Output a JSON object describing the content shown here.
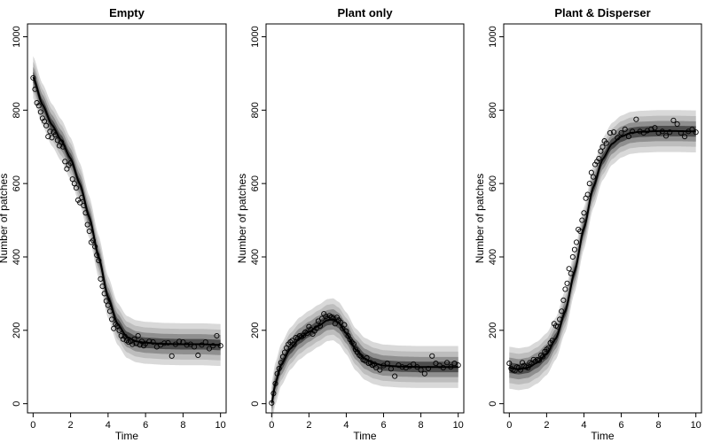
{
  "chart_data": [
    {
      "type": "scatter",
      "title": "Empty",
      "xlabel": "Time",
      "ylabel": "Number of patches",
      "xlim": [
        -0.3,
        10.3
      ],
      "ylim": [
        -25,
        1035
      ],
      "xticks": [
        0,
        2,
        4,
        6,
        8,
        10
      ],
      "yticks": [
        0,
        200,
        400,
        600,
        800,
        1000
      ],
      "mean": [
        [
          0,
          890
        ],
        [
          0.5,
          815
        ],
        [
          1,
          760
        ],
        [
          1.5,
          718
        ],
        [
          2,
          668
        ],
        [
          2.5,
          598
        ],
        [
          3,
          508
        ],
        [
          3.5,
          400
        ],
        [
          4,
          290
        ],
        [
          4.5,
          218
        ],
        [
          5,
          182
        ],
        [
          5.5,
          170
        ],
        [
          6,
          166
        ],
        [
          7,
          163
        ],
        [
          8,
          162
        ],
        [
          9,
          162
        ],
        [
          10,
          160
        ]
      ],
      "band_width": 22,
      "points": [
        [
          0,
          888
        ],
        [
          0.1,
          857
        ],
        [
          0.2,
          820
        ],
        [
          0.3,
          812
        ],
        [
          0.4,
          795
        ],
        [
          0.5,
          778
        ],
        [
          0.6,
          770
        ],
        [
          0.7,
          758
        ],
        [
          0.8,
          728
        ],
        [
          0.9,
          742
        ],
        [
          1.0,
          725
        ],
        [
          1.1,
          740
        ],
        [
          1.2,
          733
        ],
        [
          1.3,
          718
        ],
        [
          1.4,
          703
        ],
        [
          1.5,
          713
        ],
        [
          1.6,
          700
        ],
        [
          1.7,
          660
        ],
        [
          1.8,
          640
        ],
        [
          1.9,
          650
        ],
        [
          2.0,
          656
        ],
        [
          2.1,
          612
        ],
        [
          2.2,
          600
        ],
        [
          2.3,
          588
        ],
        [
          2.4,
          555
        ],
        [
          2.5,
          548
        ],
        [
          2.6,
          562
        ],
        [
          2.7,
          540
        ],
        [
          2.8,
          520
        ],
        [
          2.9,
          488
        ],
        [
          3.0,
          470
        ],
        [
          3.1,
          440
        ],
        [
          3.2,
          445
        ],
        [
          3.3,
          428
        ],
        [
          3.4,
          405
        ],
        [
          3.5,
          390
        ],
        [
          3.6,
          340
        ],
        [
          3.7,
          320
        ],
        [
          3.8,
          300
        ],
        [
          3.9,
          280
        ],
        [
          4.0,
          268
        ],
        [
          4.1,
          252
        ],
        [
          4.2,
          230
        ],
        [
          4.3,
          205
        ],
        [
          4.4,
          217
        ],
        [
          4.5,
          212
        ],
        [
          4.6,
          200
        ],
        [
          4.7,
          185
        ],
        [
          4.8,
          176
        ],
        [
          4.9,
          183
        ],
        [
          5.0,
          172
        ],
        [
          5.1,
          168
        ],
        [
          5.2,
          170
        ],
        [
          5.3,
          162
        ],
        [
          5.4,
          176
        ],
        [
          5.5,
          165
        ],
        [
          5.6,
          185
        ],
        [
          5.7,
          160
        ],
        [
          5.8,
          170
        ],
        [
          5.9,
          158
        ],
        [
          6.0,
          164
        ],
        [
          6.2,
          170
        ],
        [
          6.4,
          168
        ],
        [
          6.6,
          155
        ],
        [
          6.8,
          160
        ],
        [
          7.0,
          165
        ],
        [
          7.2,
          166
        ],
        [
          7.4,
          130
        ],
        [
          7.6,
          162
        ],
        [
          7.8,
          170
        ],
        [
          8.0,
          168
        ],
        [
          8.2,
          160
        ],
        [
          8.4,
          162
        ],
        [
          8.6,
          155
        ],
        [
          8.8,
          132
        ],
        [
          9.0,
          160
        ],
        [
          9.2,
          168
        ],
        [
          9.4,
          150
        ],
        [
          9.6,
          158
        ],
        [
          9.8,
          185
        ],
        [
          10.0,
          158
        ]
      ]
    },
    {
      "type": "scatter",
      "title": "Plant only",
      "xlabel": "Time",
      "ylabel": "Number of patches",
      "xlim": [
        -0.3,
        10.3
      ],
      "ylim": [
        -25,
        1035
      ],
      "xticks": [
        0,
        2,
        4,
        6,
        8,
        10
      ],
      "yticks": [
        0,
        200,
        400,
        600,
        800,
        1000
      ],
      "mean": [
        [
          0,
          2
        ],
        [
          0.2,
          55
        ],
        [
          0.5,
          105
        ],
        [
          1,
          150
        ],
        [
          1.5,
          178
        ],
        [
          2,
          196
        ],
        [
          2.5,
          212
        ],
        [
          3,
          228
        ],
        [
          3.3,
          230
        ],
        [
          3.6,
          220
        ],
        [
          4,
          192
        ],
        [
          4.5,
          148
        ],
        [
          5,
          122
        ],
        [
          5.5,
          110
        ],
        [
          6,
          104
        ],
        [
          7,
          101
        ],
        [
          8,
          100
        ],
        [
          9,
          100
        ],
        [
          10,
          100
        ]
      ],
      "band_width": 22,
      "points": [
        [
          0,
          2
        ],
        [
          0.1,
          28
        ],
        [
          0.2,
          55
        ],
        [
          0.3,
          82
        ],
        [
          0.4,
          96
        ],
        [
          0.5,
          112
        ],
        [
          0.6,
          128
        ],
        [
          0.7,
          140
        ],
        [
          0.8,
          152
        ],
        [
          0.9,
          162
        ],
        [
          1.0,
          168
        ],
        [
          1.1,
          172
        ],
        [
          1.2,
          162
        ],
        [
          1.3,
          180
        ],
        [
          1.4,
          178
        ],
        [
          1.5,
          185
        ],
        [
          1.6,
          182
        ],
        [
          1.7,
          186
        ],
        [
          1.8,
          195
        ],
        [
          1.9,
          192
        ],
        [
          2.0,
          210
        ],
        [
          2.1,
          202
        ],
        [
          2.2,
          190
        ],
        [
          2.3,
          198
        ],
        [
          2.4,
          206
        ],
        [
          2.5,
          225
        ],
        [
          2.6,
          212
        ],
        [
          2.7,
          232
        ],
        [
          2.8,
          245
        ],
        [
          2.9,
          238
        ],
        [
          3.0,
          232
        ],
        [
          3.1,
          240
        ],
        [
          3.2,
          236
        ],
        [
          3.3,
          232
        ],
        [
          3.4,
          218
        ],
        [
          3.5,
          235
        ],
        [
          3.6,
          228
        ],
        [
          3.7,
          222
        ],
        [
          3.8,
          205
        ],
        [
          3.9,
          215
        ],
        [
          4.0,
          198
        ],
        [
          4.1,
          185
        ],
        [
          4.2,
          175
        ],
        [
          4.3,
          168
        ],
        [
          4.4,
          163
        ],
        [
          4.5,
          148
        ],
        [
          4.6,
          140
        ],
        [
          4.7,
          132
        ],
        [
          4.8,
          128
        ],
        [
          4.9,
          120
        ],
        [
          5.0,
          118
        ],
        [
          5.1,
          125
        ],
        [
          5.2,
          110
        ],
        [
          5.3,
          112
        ],
        [
          5.4,
          105
        ],
        [
          5.5,
          108
        ],
        [
          5.6,
          98
        ],
        [
          5.8,
          92
        ],
        [
          6.0,
          104
        ],
        [
          6.2,
          110
        ],
        [
          6.4,
          95
        ],
        [
          6.6,
          75
        ],
        [
          6.8,
          105
        ],
        [
          7.0,
          100
        ],
        [
          7.2,
          98
        ],
        [
          7.4,
          102
        ],
        [
          7.6,
          108
        ],
        [
          7.8,
          100
        ],
        [
          8.0,
          92
        ],
        [
          8.2,
          82
        ],
        [
          8.4,
          96
        ],
        [
          8.6,
          130
        ],
        [
          8.8,
          110
        ],
        [
          9.0,
          104
        ],
        [
          9.2,
          98
        ],
        [
          9.4,
          112
        ],
        [
          9.6,
          100
        ],
        [
          9.8,
          110
        ],
        [
          10.0,
          105
        ]
      ]
    },
    {
      "type": "scatter",
      "title": "Plant & Disperser",
      "xlabel": "Time",
      "ylabel": "Number of patches",
      "xlim": [
        -0.3,
        10.3
      ],
      "ylim": [
        -25,
        1035
      ],
      "xticks": [
        0,
        2,
        4,
        6,
        8,
        10
      ],
      "yticks": [
        0,
        200,
        400,
        600,
        800,
        1000
      ],
      "mean": [
        [
          0,
          98
        ],
        [
          0.5,
          94
        ],
        [
          1,
          98
        ],
        [
          1.5,
          112
        ],
        [
          2,
          135
        ],
        [
          2.5,
          178
        ],
        [
          3,
          252
        ],
        [
          3.5,
          360
        ],
        [
          4,
          478
        ],
        [
          4.5,
          590
        ],
        [
          5,
          666
        ],
        [
          5.5,
          708
        ],
        [
          6,
          728
        ],
        [
          6.5,
          738
        ],
        [
          7,
          741
        ],
        [
          8,
          743
        ],
        [
          9,
          743
        ],
        [
          10,
          742
        ]
      ],
      "band_width": 22,
      "points": [
        [
          0,
          110
        ],
        [
          0.1,
          96
        ],
        [
          0.2,
          92
        ],
        [
          0.3,
          90
        ],
        [
          0.4,
          100
        ],
        [
          0.5,
          98
        ],
        [
          0.6,
          92
        ],
        [
          0.7,
          112
        ],
        [
          0.8,
          104
        ],
        [
          0.9,
          100
        ],
        [
          1.0,
          98
        ],
        [
          1.1,
          112
        ],
        [
          1.2,
          110
        ],
        [
          1.3,
          120
        ],
        [
          1.4,
          115
        ],
        [
          1.5,
          120
        ],
        [
          1.6,
          118
        ],
        [
          1.7,
          132
        ],
        [
          1.8,
          128
        ],
        [
          1.9,
          142
        ],
        [
          2.0,
          148
        ],
        [
          2.1,
          152
        ],
        [
          2.2,
          166
        ],
        [
          2.3,
          172
        ],
        [
          2.4,
          218
        ],
        [
          2.5,
          212
        ],
        [
          2.6,
          210
        ],
        [
          2.7,
          230
        ],
        [
          2.8,
          252
        ],
        [
          2.9,
          282
        ],
        [
          3.0,
          312
        ],
        [
          3.1,
          328
        ],
        [
          3.2,
          368
        ],
        [
          3.3,
          355
        ],
        [
          3.4,
          400
        ],
        [
          3.5,
          420
        ],
        [
          3.6,
          440
        ],
        [
          3.7,
          475
        ],
        [
          3.8,
          470
        ],
        [
          3.9,
          500
        ],
        [
          4.0,
          520
        ],
        [
          4.1,
          560
        ],
        [
          4.2,
          570
        ],
        [
          4.3,
          600
        ],
        [
          4.4,
          630
        ],
        [
          4.5,
          618
        ],
        [
          4.6,
          652
        ],
        [
          4.7,
          660
        ],
        [
          4.8,
          668
        ],
        [
          4.9,
          688
        ],
        [
          5.0,
          700
        ],
        [
          5.1,
          716
        ],
        [
          5.2,
          710
        ],
        [
          5.4,
          738
        ],
        [
          5.6,
          740
        ],
        [
          5.8,
          725
        ],
        [
          6.0,
          738
        ],
        [
          6.2,
          748
        ],
        [
          6.4,
          728
        ],
        [
          6.6,
          742
        ],
        [
          6.8,
          775
        ],
        [
          7.0,
          742
        ],
        [
          7.2,
          738
        ],
        [
          7.4,
          744
        ],
        [
          7.6,
          748
        ],
        [
          7.8,
          752
        ],
        [
          8.0,
          738
        ],
        [
          8.2,
          742
        ],
        [
          8.4,
          730
        ],
        [
          8.6,
          740
        ],
        [
          8.8,
          772
        ],
        [
          9.0,
          762
        ],
        [
          9.2,
          738
        ],
        [
          9.4,
          728
        ],
        [
          9.6,
          742
        ],
        [
          9.8,
          748
        ],
        [
          10.0,
          740
        ]
      ]
    }
  ]
}
